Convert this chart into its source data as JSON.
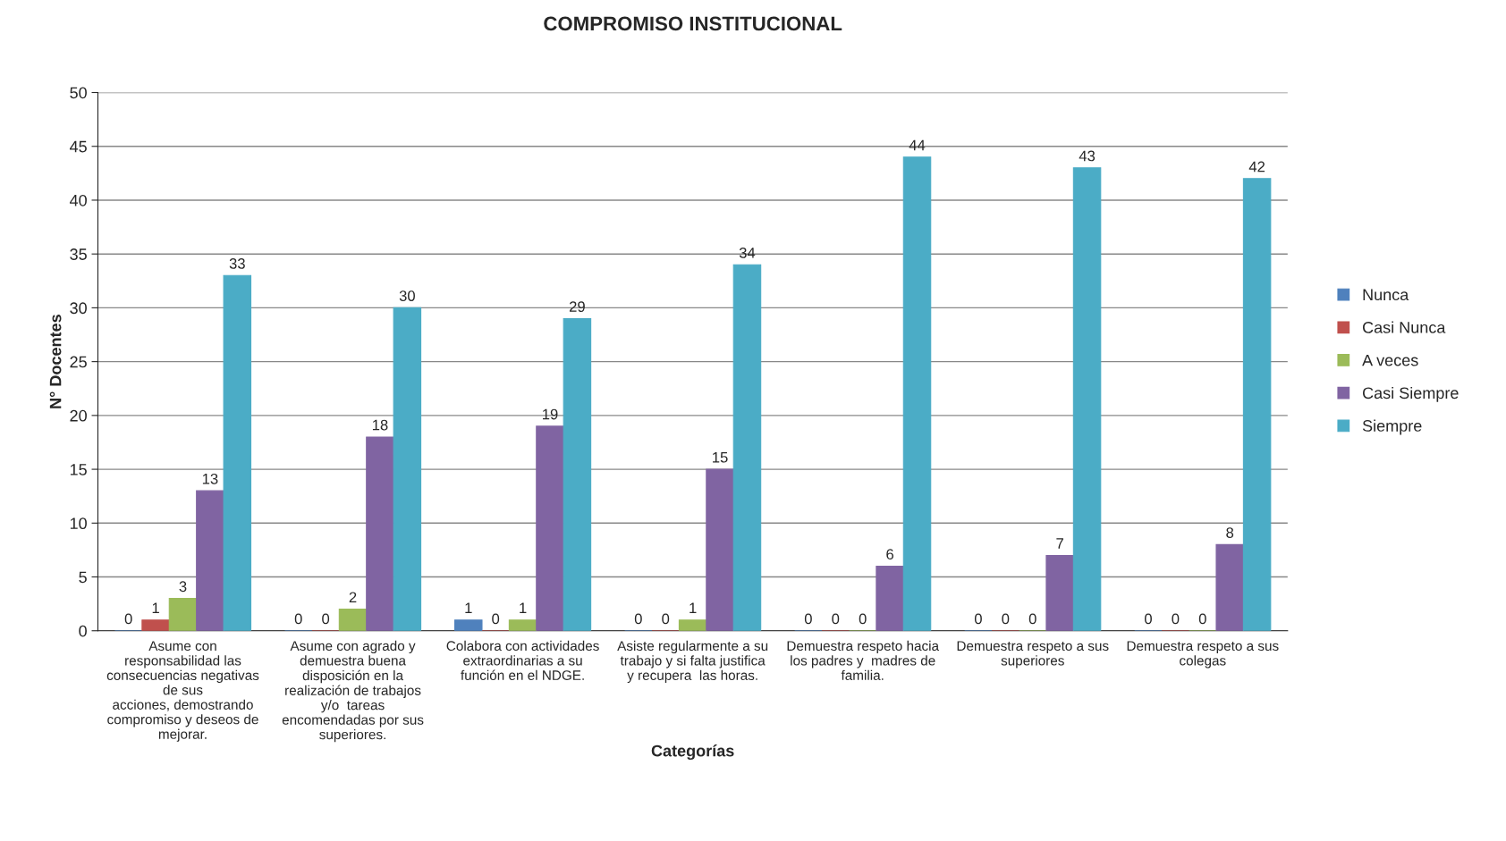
{
  "chart_data": {
    "type": "bar",
    "title": "COMPROMISO INSTITUCIONAL",
    "xlabel": "Categorías",
    "ylabel": "N° Docentes",
    "categories": [
      "Asume con\nresponsabilidad las\nconsecuencias negativas\nde sus\nacciones, demostrando\ncompromiso y deseos de\nmejorar.",
      "Asume con agrado y\ndemuestra buena\ndisposición en la\nrealización de trabajos\ny/o  tareas\nencomendadas por sus\nsuperiores.",
      "Colabora con actividades\nextraordinarias a su\nfunción en el NDGE.",
      "Asiste regularmente a su\ntrabajo y si falta justifica\ny recupera  las horas.",
      "Demuestra respeto hacia\nlos padres y  madres de\nfamilia.",
      "Demuestra respeto a sus\nsuperiores",
      "Demuestra respeto a sus\ncolegas"
    ],
    "series": [
      {
        "name": "Nunca",
        "color": "#4f81bd",
        "values": [
          0,
          0,
          1,
          0,
          0,
          0,
          0
        ]
      },
      {
        "name": "Casi Nunca",
        "color": "#c0504d",
        "values": [
          1,
          0,
          0,
          0,
          0,
          0,
          0
        ]
      },
      {
        "name": "A veces",
        "color": "#9bbb59",
        "values": [
          3,
          2,
          1,
          1,
          0,
          0,
          0
        ]
      },
      {
        "name": "Casi Siempre",
        "color": "#8064a2",
        "values": [
          13,
          18,
          19,
          15,
          6,
          7,
          8
        ]
      },
      {
        "name": "Siempre",
        "color": "#4bacc6",
        "values": [
          33,
          30,
          29,
          34,
          44,
          43,
          42
        ]
      }
    ],
    "ylim": [
      0,
      50
    ],
    "yticks": [
      0,
      5,
      10,
      15,
      20,
      25,
      30,
      35,
      40,
      45,
      50
    ],
    "grid": "y",
    "legend": "right",
    "data_labels": true
  }
}
